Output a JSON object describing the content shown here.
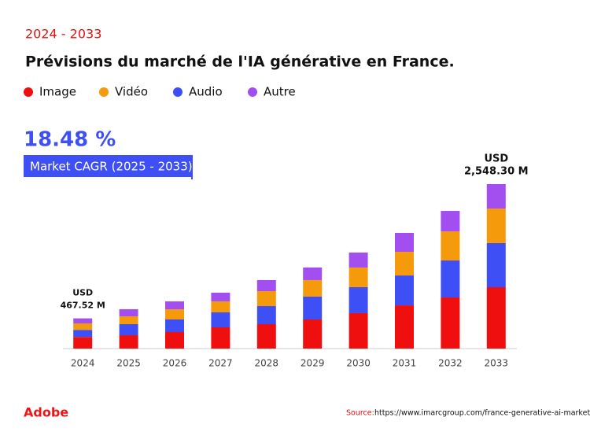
{
  "chart_data": {
    "type": "bar",
    "stacked": true,
    "subtitle": "2024 - 2033",
    "title": "Prévisions du marché de l'IA générative en France.",
    "categories": [
      "2024",
      "2025",
      "2026",
      "2027",
      "2028",
      "2029",
      "2030",
      "2031",
      "2032",
      "2033"
    ],
    "series": [
      {
        "name": "Image",
        "color": "#f00f0f",
        "values": [
          180,
          207,
          256,
          329,
          378,
          451,
          549,
          670,
          792,
          951
        ]
      },
      {
        "name": "Vidéo",
        "color": "#f59b0b",
        "values": [
          100,
          122,
          158,
          171,
          232,
          256,
          305,
          366,
          451,
          536
        ]
      },
      {
        "name": "Audio",
        "color": "#3d4ff5",
        "values": [
          110,
          171,
          195,
          232,
          280,
          354,
          402,
          463,
          573,
          683
        ]
      },
      {
        "name": "Autre",
        "color": "#a34ff0",
        "values": [
          78,
          110,
          122,
          134,
          171,
          195,
          232,
          293,
          317,
          378
        ]
      }
    ],
    "stack_order": [
      0,
      2,
      1,
      3
    ],
    "cagr_value": "18.48 %",
    "cagr_label": "Market CAGR (2025 - 2033)",
    "first_label": [
      "USD",
      "467.52 M"
    ],
    "last_label": [
      "USD",
      "2,548.30 M"
    ]
  },
  "footer": {
    "logo": "Adobe",
    "source_label": "Source:",
    "source_url": "https://www.imarcgroup.com/france-generative-ai-market"
  }
}
